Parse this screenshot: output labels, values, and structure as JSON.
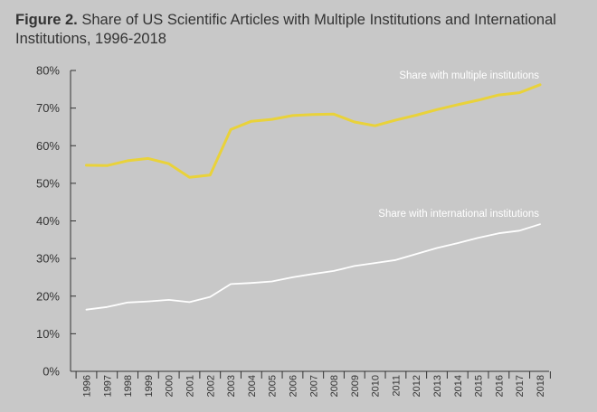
{
  "figure": {
    "label": "Figure 2.",
    "title": "Share of US Scientific Articles with Multiple Institutions and International Institutions, 1996-2018"
  },
  "colors": {
    "background": "#c8c8c8",
    "multiple": "#e9d23a",
    "international": "#ffffff",
    "axis": "#333333"
  },
  "chart_data": {
    "type": "line",
    "title": "Share of US Scientific Articles with Multiple Institutions and International Institutions, 1996-2018",
    "xlabel": "",
    "ylabel": "",
    "x": [
      "1996",
      "1997",
      "1998",
      "1999",
      "2000",
      "2001",
      "2002",
      "2003",
      "2004",
      "2005",
      "2006",
      "2007",
      "2008",
      "2009",
      "2010",
      "2011",
      "2012",
      "2013",
      "2014",
      "2015",
      "2016",
      "2017",
      "2018"
    ],
    "y_ticks": [
      "0%",
      "10%",
      "20%",
      "30%",
      "40%",
      "50%",
      "60%",
      "70%",
      "80%"
    ],
    "ylim": [
      0,
      80
    ],
    "grid": false,
    "series": [
      {
        "name": "Share with multiple institutions",
        "values": [
          54.8,
          54.7,
          56.0,
          56.6,
          55.2,
          51.6,
          52.2,
          64.3,
          66.5,
          67.0,
          68.0,
          68.3,
          68.4,
          66.3,
          65.3,
          66.8,
          68.1,
          69.6,
          70.9,
          72.1,
          73.5,
          74.1,
          76.2
        ]
      },
      {
        "name": "Share with international institutions",
        "values": [
          16.4,
          17.1,
          18.3,
          18.6,
          19.0,
          18.4,
          19.8,
          23.2,
          23.5,
          23.9,
          25.0,
          25.9,
          26.7,
          28.0,
          28.8,
          29.6,
          31.2,
          32.8,
          34.1,
          35.5,
          36.7,
          37.4,
          39.1
        ]
      }
    ]
  }
}
